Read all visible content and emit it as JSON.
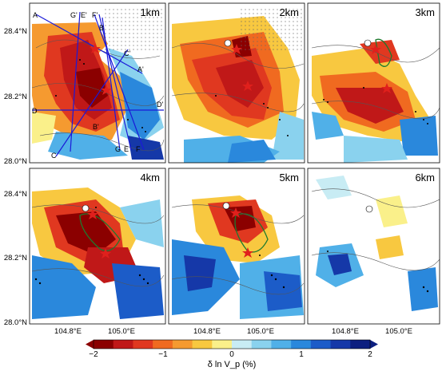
{
  "panels": [
    {
      "label": "1km"
    },
    {
      "label": "2km"
    },
    {
      "label": "3km"
    },
    {
      "label": "4km"
    },
    {
      "label": "5km"
    },
    {
      "label": "6km"
    }
  ],
  "y_axis_labels": {
    "top": [
      "28.4°N",
      "28.2°N",
      "28.0°N"
    ],
    "bottom": [
      "28.4°N",
      "28.2°N",
      "28.0°N"
    ]
  },
  "x_axis_labels": [
    "104.8°E",
    "105.0°E"
  ],
  "profile_labels": [
    "A",
    "G'",
    "E'",
    "F'",
    "B",
    "C'",
    "A'",
    "D",
    "D'",
    "B'",
    "C",
    "G",
    "E",
    "F"
  ],
  "colorbar": {
    "ticks": [
      "−2",
      "−1",
      "0",
      "1",
      "2"
    ],
    "title": "δ ln V_p (%)",
    "colors": [
      "#8b0000",
      "#c01818",
      "#e03820",
      "#f06a20",
      "#f59a30",
      "#f8c840",
      "#faf08a",
      "#c8ecf4",
      "#8ad2ee",
      "#50b0e8",
      "#2a88dc",
      "#1c5cc8",
      "#1538a8",
      "#0c1f80"
    ]
  },
  "accent": {
    "star": "#e0201c",
    "profile_line": "#1a1ad8",
    "outline": "#1e7a2e"
  }
}
